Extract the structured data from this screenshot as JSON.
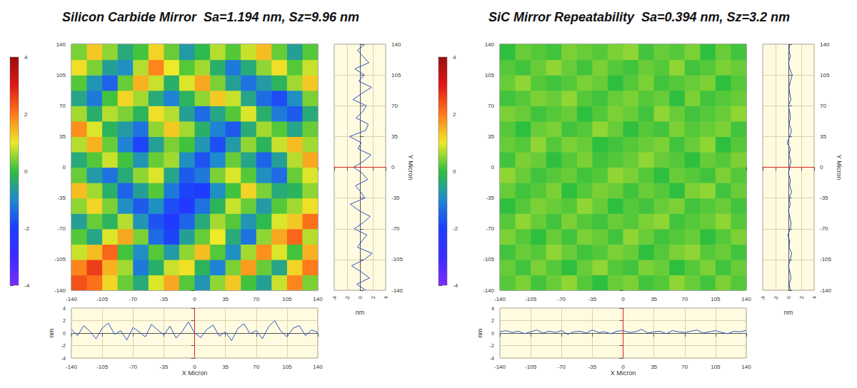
{
  "chart_data": [
    {
      "type": "heatmap",
      "title": "Silicon Carbide Mirror  Sa=1.194 nm, Sz=9.96 nm",
      "x_label": "X Micron",
      "y_label": "Y Micron",
      "xlim": [
        -140,
        140
      ],
      "xticks": [
        -140,
        -105,
        -70,
        -35,
        0,
        35,
        70,
        105,
        140
      ],
      "ylim": [
        -140,
        140
      ],
      "yticks": [
        -140,
        -105,
        -70,
        -35,
        0,
        35,
        70,
        105,
        140
      ],
      "grid": true,
      "surface": {
        "x": [
          -131.25,
          -113.75,
          -96.25,
          -78.75,
          -61.25,
          -43.75,
          -26.25,
          -8.75,
          8.75,
          26.25,
          43.75,
          61.25,
          78.75,
          96.25,
          113.75,
          131.25
        ],
        "y": [
          -131.25,
          -113.75,
          -96.25,
          -78.75,
          -61.25,
          -43.75,
          -26.25,
          -8.75,
          8.75,
          26.25,
          43.75,
          61.25,
          78.75,
          96.25,
          113.75,
          131.25
        ],
        "z": [
          [
            2.4,
            2.1,
            1.2,
            0.3,
            -0.4,
            0.9,
            1.6,
            0.2,
            -0.8,
            0.5,
            1.3,
            0.1,
            -0.6,
            0.8,
            1.9,
            0.4
          ],
          [
            1.9,
            2.6,
            1.5,
            0.6,
            -1.2,
            -0.3,
            0.8,
            1.1,
            -0.2,
            -1.1,
            0.4,
            1.7,
            0.3,
            -0.5,
            1.2,
            2.0
          ],
          [
            0.8,
            1.4,
            2.2,
            0.1,
            -0.9,
            0.2,
            -0.7,
            0.5,
            1.4,
            0.2,
            -0.9,
            0.6,
            1.8,
            0.9,
            0.1,
            1.5
          ],
          [
            0.2,
            -0.5,
            0.9,
            1.6,
            0.4,
            -1.4,
            -1.9,
            -0.6,
            0.3,
            1.0,
            -0.4,
            -1.3,
            0.5,
            1.6,
            2.2,
            0.7
          ],
          [
            -0.6,
            0.3,
            -0.2,
            0.7,
            -0.8,
            -1.7,
            -2.1,
            -1.5,
            -0.4,
            0.6,
            0.2,
            -0.8,
            -0.1,
            0.9,
            1.3,
            2.1
          ],
          [
            0.5,
            1.2,
            0.4,
            -0.9,
            -1.6,
            -0.9,
            -1.8,
            -2.2,
            -1.3,
            -0.2,
            0.8,
            0.3,
            -0.7,
            0.2,
            0.6,
            1.1
          ],
          [
            1.4,
            0.6,
            -0.3,
            -1.5,
            -0.6,
            0.2,
            -1.2,
            -1.9,
            -2.0,
            -0.9,
            0.1,
            1.2,
            0.4,
            -0.4,
            -0.2,
            0.5
          ],
          [
            0.3,
            -0.7,
            -1.3,
            -0.4,
            0.5,
            0.9,
            -0.5,
            -1.6,
            -1.2,
            0.4,
            0.9,
            0.2,
            -0.9,
            -1.4,
            0.3,
            0.9
          ],
          [
            -0.4,
            0.2,
            0.8,
            0.1,
            -0.8,
            0.3,
            0.6,
            -0.9,
            -1.7,
            -1.0,
            0.3,
            -0.5,
            -1.5,
            -0.6,
            0.7,
            1.6
          ],
          [
            0.7,
            1.5,
            0.3,
            -1.1,
            -1.9,
            -0.6,
            0.4,
            0.1,
            -0.8,
            -1.8,
            -0.7,
            0.5,
            -0.2,
            0.8,
            1.4,
            0.6
          ],
          [
            1.8,
            0.9,
            -0.2,
            -0.7,
            -1.3,
            0.5,
            1.3,
            0.6,
            -0.3,
            -1.1,
            -1.6,
            -0.4,
            0.6,
            0.2,
            -0.5,
            0.3
          ],
          [
            0.6,
            -0.3,
            0.7,
            0.4,
            -0.2,
            1.1,
            0.7,
            -0.6,
            -1.4,
            -0.5,
            0.2,
            0.9,
            -0.3,
            -1.2,
            -1.6,
            -0.4
          ],
          [
            -0.5,
            -1.2,
            0.1,
            1.2,
            0.6,
            -0.4,
            -1.1,
            -0.2,
            0.5,
            1.3,
            0.8,
            -0.5,
            -1.4,
            -1.8,
            -0.9,
            0.4
          ],
          [
            0.2,
            -0.8,
            -1.5,
            0.3,
            1.5,
            0.8,
            -0.3,
            0.9,
            1.6,
            0.4,
            -0.6,
            -1.3,
            -0.7,
            -0.2,
            0.6,
            1.3
          ],
          [
            1.1,
            0.4,
            -0.6,
            -0.9,
            0.7,
            1.9,
            1.0,
            0.2,
            0.6,
            -0.3,
            -1.2,
            -0.4,
            0.5,
            1.1,
            0.2,
            0.8
          ],
          [
            0.4,
            1.3,
            0.5,
            -0.4,
            0.1,
            1.2,
            0.3,
            -0.7,
            -0.1,
            0.7,
            0.2,
            0.8,
            1.4,
            0.3,
            -0.6,
            0.2
          ]
        ]
      },
      "colorbar": {
        "range": [
          -4,
          4
        ],
        "ticks": [
          -4,
          -2,
          0,
          2,
          4
        ]
      },
      "profile_x": {
        "color": "#3050c8",
        "z_label": "nm",
        "cursor": 0,
        "zlim": [
          -4,
          4
        ],
        "zticks": [
          -4,
          -2,
          0,
          2,
          4
        ],
        "x": [
          -140,
          -133,
          -126,
          -119,
          -112,
          -105,
          -98,
          -91,
          -84,
          -77,
          -70,
          -63,
          -56,
          -49,
          -42,
          -35,
          -28,
          -21,
          -14,
          -7,
          0,
          7,
          14,
          21,
          28,
          35,
          42,
          49,
          56,
          63,
          70,
          77,
          84,
          91,
          98,
          105,
          112,
          119,
          126,
          133,
          140
        ],
        "values": [
          0.6,
          -0.4,
          1.2,
          0.3,
          -0.9,
          0.8,
          1.6,
          -0.2,
          0.4,
          -1.1,
          0.9,
          0.2,
          -0.6,
          1.4,
          0.5,
          -0.3,
          1.1,
          -0.8,
          0.3,
          1.8,
          0.0,
          -0.7,
          0.6,
          1.3,
          -0.5,
          0.2,
          -1.2,
          0.7,
          1.5,
          -0.1,
          0.4,
          -0.9,
          1.0,
          2.0,
          0.3,
          -0.6,
          0.8,
          1.2,
          -0.4,
          0.5,
          0.1
        ]
      },
      "profile_y": {
        "color": "#3050c8",
        "z_label": "nm",
        "cursor": 0,
        "zlim": [
          -4,
          4
        ],
        "zticks": [
          -4,
          -2,
          0,
          2,
          4
        ],
        "y": [
          -140,
          -133,
          -126,
          -119,
          -112,
          -105,
          -98,
          -91,
          -84,
          -77,
          -70,
          -63,
          -56,
          -49,
          -42,
          -35,
          -28,
          -21,
          -14,
          -7,
          0,
          7,
          14,
          21,
          28,
          35,
          42,
          49,
          56,
          63,
          70,
          77,
          84,
          91,
          98,
          105,
          112,
          119,
          126,
          133,
          140
        ],
        "values": [
          0.9,
          -0.5,
          1.5,
          0.2,
          -1.3,
          0.7,
          1.9,
          -0.4,
          0.3,
          1.1,
          -0.9,
          0.5,
          1.6,
          -0.2,
          -1.5,
          0.8,
          0.1,
          -0.7,
          1.2,
          0.4,
          -1.0,
          0.6,
          1.7,
          -0.3,
          0.2,
          -1.6,
          0.9,
          1.3,
          -0.6,
          0.4,
          1.0,
          -1.1,
          0.3,
          1.8,
          -0.2,
          0.7,
          -0.8,
          1.4,
          0.5,
          -0.4,
          0.8
        ]
      }
    },
    {
      "type": "heatmap",
      "title": "SiC Mirror Repeatability  Sa=0.394 nm, Sz=3.2 nm",
      "x_label": "X Micron",
      "y_label": "Y Micron",
      "xlim": [
        -140,
        140
      ],
      "xticks": [
        -140,
        -105,
        -70,
        -35,
        0,
        35,
        70,
        105,
        140
      ],
      "ylim": [
        -140,
        140
      ],
      "yticks": [
        -140,
        -105,
        -70,
        -35,
        0,
        35,
        70,
        105,
        140
      ],
      "grid": true,
      "surface": {
        "x": [
          -131.25,
          -113.75,
          -96.25,
          -78.75,
          -61.25,
          -43.75,
          -26.25,
          -8.75,
          8.75,
          26.25,
          43.75,
          61.25,
          78.75,
          96.25,
          113.75,
          131.25
        ],
        "y": [
          -131.25,
          -113.75,
          -96.25,
          -78.75,
          -61.25,
          -43.75,
          -26.25,
          -8.75,
          8.75,
          26.25,
          43.75,
          61.25,
          78.75,
          96.25,
          113.75,
          131.25
        ],
        "z": [
          [
            0.2,
            0.4,
            0.1,
            0.3,
            0.5,
            0.2,
            0.0,
            0.3,
            0.4,
            0.1,
            0.2,
            0.5,
            0.3,
            0.1,
            0.4,
            0.2
          ],
          [
            0.3,
            0.1,
            0.4,
            0.2,
            0.0,
            0.3,
            0.5,
            0.2,
            0.1,
            0.4,
            0.3,
            0.0,
            0.2,
            0.4,
            0.1,
            0.3
          ],
          [
            0.1,
            0.3,
            0.2,
            0.5,
            0.3,
            0.1,
            0.2,
            0.4,
            0.3,
            0.0,
            0.2,
            0.4,
            0.5,
            0.2,
            0.3,
            0.1
          ],
          [
            0.4,
            0.2,
            0.0,
            0.3,
            0.1,
            0.4,
            0.3,
            0.1,
            0.5,
            0.3,
            0.1,
            0.2,
            0.3,
            0.0,
            0.2,
            0.4
          ],
          [
            0.2,
            0.5,
            0.3,
            0.1,
            0.4,
            0.2,
            0.1,
            0.3,
            0.2,
            0.4,
            0.5,
            0.1,
            0.2,
            0.3,
            0.5,
            0.2
          ],
          [
            0.0,
            0.2,
            0.4,
            0.3,
            0.2,
            0.5,
            0.3,
            0.0,
            0.2,
            0.1,
            0.3,
            0.4,
            0.1,
            0.2,
            0.3,
            0.1
          ],
          [
            0.3,
            0.1,
            0.2,
            0.4,
            0.0,
            0.2,
            0.4,
            0.3,
            0.1,
            0.3,
            0.2,
            0.0,
            0.4,
            0.5,
            0.1,
            0.3
          ],
          [
            0.5,
            0.3,
            0.1,
            0.2,
            0.3,
            0.1,
            0.2,
            0.5,
            0.4,
            0.2,
            0.0,
            0.3,
            0.2,
            0.1,
            0.4,
            0.2
          ],
          [
            0.1,
            0.4,
            0.3,
            0.0,
            0.2,
            0.4,
            0.1,
            0.2,
            0.3,
            0.5,
            0.3,
            0.2,
            0.0,
            0.3,
            0.2,
            0.4
          ],
          [
            0.3,
            0.2,
            0.5,
            0.2,
            0.4,
            0.3,
            0.0,
            0.1,
            0.2,
            0.3,
            0.4,
            0.1,
            0.3,
            0.5,
            0.0,
            0.2
          ],
          [
            0.2,
            0.0,
            0.3,
            0.4,
            0.1,
            0.2,
            0.5,
            0.3,
            0.0,
            0.2,
            0.1,
            0.4,
            0.2,
            0.3,
            0.4,
            0.1
          ],
          [
            0.4,
            0.3,
            0.1,
            0.2,
            0.3,
            0.0,
            0.2,
            0.4,
            0.3,
            0.1,
            0.5,
            0.3,
            0.1,
            0.2,
            0.3,
            0.5
          ],
          [
            0.1,
            0.2,
            0.4,
            0.3,
            0.5,
            0.2,
            0.1,
            0.3,
            0.4,
            0.2,
            0.3,
            0.0,
            0.4,
            0.1,
            0.2,
            0.3
          ],
          [
            0.3,
            0.5,
            0.2,
            0.1,
            0.2,
            0.4,
            0.3,
            0.0,
            0.2,
            0.4,
            0.1,
            0.2,
            0.3,
            0.4,
            0.0,
            0.2
          ],
          [
            0.2,
            0.1,
            0.3,
            0.5,
            0.3,
            0.1,
            0.4,
            0.2,
            0.1,
            0.3,
            0.2,
            0.5,
            0.1,
            0.2,
            0.4,
            0.3
          ],
          [
            0.0,
            0.3,
            0.2,
            0.1,
            0.4,
            0.3,
            0.2,
            0.4,
            0.5,
            0.1,
            0.3,
            0.2,
            0.4,
            0.0,
            0.3,
            0.1
          ]
        ]
      },
      "colorbar": {
        "range": [
          -4,
          4
        ],
        "ticks": [
          -4,
          -2,
          0,
          2,
          4
        ]
      },
      "profile_x": {
        "color": "#3050c8",
        "z_label": "nm",
        "cursor": 0,
        "zlim": [
          -4,
          4
        ],
        "zticks": [
          -4,
          -2,
          0,
          2,
          4
        ],
        "x": [
          -140,
          -133,
          -126,
          -119,
          -112,
          -105,
          -98,
          -91,
          -84,
          -77,
          -70,
          -63,
          -56,
          -49,
          -42,
          -35,
          -28,
          -21,
          -14,
          -7,
          0,
          7,
          14,
          21,
          28,
          35,
          42,
          49,
          56,
          63,
          70,
          77,
          84,
          91,
          98,
          105,
          112,
          119,
          126,
          133,
          140
        ],
        "values": [
          0.2,
          0.4,
          0.1,
          0.3,
          -0.1,
          0.2,
          0.5,
          0.0,
          0.3,
          0.1,
          0.4,
          -0.2,
          0.2,
          0.3,
          0.0,
          0.5,
          0.1,
          0.2,
          -0.1,
          0.3,
          0.4,
          0.1,
          0.2,
          0.6,
          0.0,
          0.2,
          0.3,
          -0.1,
          0.4,
          0.2,
          0.1,
          0.3,
          0.5,
          0.0,
          0.2,
          0.4,
          0.1,
          -0.1,
          0.3,
          0.2,
          0.4
        ]
      },
      "profile_y": {
        "color": "#3050c8",
        "z_label": "nm",
        "cursor": 0,
        "zlim": [
          -4,
          4
        ],
        "zticks": [
          -4,
          -2,
          0,
          2,
          4
        ],
        "y": [
          -140,
          -133,
          -126,
          -119,
          -112,
          -105,
          -98,
          -91,
          -84,
          -77,
          -70,
          -63,
          -56,
          -49,
          -42,
          -35,
          -28,
          -21,
          -14,
          -7,
          0,
          7,
          14,
          21,
          28,
          35,
          42,
          49,
          56,
          63,
          70,
          77,
          84,
          91,
          98,
          105,
          112,
          119,
          126,
          133,
          140
        ],
        "values": [
          0.3,
          0.1,
          0.4,
          0.2,
          0.0,
          0.3,
          0.5,
          0.1,
          0.2,
          -0.1,
          0.3,
          0.4,
          0.2,
          0.0,
          0.3,
          0.1,
          0.5,
          0.2,
          0.3,
          0.0,
          0.2,
          0.4,
          0.1,
          0.3,
          -0.2,
          0.2,
          0.5,
          0.1,
          0.3,
          0.2,
          0.0,
          0.4,
          0.2,
          0.1,
          0.3,
          0.6,
          0.2,
          0.0,
          0.3,
          0.1,
          0.2
        ]
      }
    }
  ]
}
